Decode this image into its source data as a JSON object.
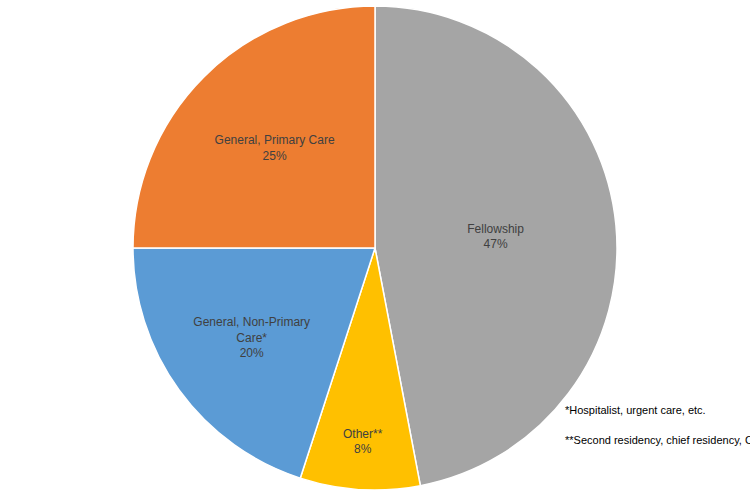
{
  "chart_data": {
    "type": "pie",
    "categories": [
      "Fellowship",
      "Other**",
      "General, Non-Primary Care*",
      "General, Primary Care"
    ],
    "values": [
      47,
      8,
      20,
      25
    ],
    "value_labels": [
      "47%",
      "8%",
      "20%",
      "25%"
    ],
    "colors": [
      "#a5a5a5",
      "#ffc000",
      "#5b9bd5",
      "#ed7d31"
    ],
    "data_labels": true,
    "annotations": [
      "*Hospitalist, urgent care, etc.",
      "**Second residency, chief residency, CDC, etc."
    ]
  }
}
